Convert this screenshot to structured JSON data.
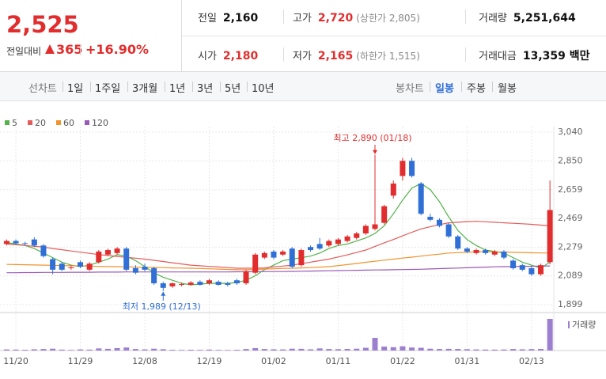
{
  "quote": {
    "price": "2,525",
    "change_label": "전일대비",
    "change": "365",
    "change_pct": "+16.90%",
    "color": "#e12d2d"
  },
  "summary": [
    [
      {
        "label": "전일",
        "value": "2,160",
        "color": "#111111"
      },
      {
        "label": "고가",
        "value": "2,720",
        "note": "(상한가 2,805)",
        "color": "#e12d2d"
      },
      {
        "label": "거래량",
        "value": "5,251,644",
        "color": "#111111"
      }
    ],
    [
      {
        "label": "시가",
        "value": "2,180",
        "color": "#e12d2d"
      },
      {
        "label": "저가",
        "value": "2,165",
        "note": "(하한가 1,515)",
        "color": "#e12d2d"
      },
      {
        "label": "거래대금",
        "value": "13,359 백만",
        "color": "#111111"
      }
    ]
  ],
  "toolbar": {
    "line_label": "선차트",
    "line_periods": [
      "1일",
      "1주일",
      "3개월",
      "1년",
      "3년",
      "5년",
      "10년"
    ],
    "candle_label": "봉차트",
    "candle_periods": [
      "일봉",
      "주봉",
      "월봉"
    ],
    "active": 0
  },
  "chart_data": {
    "type": "candlestick",
    "categories": [
      null,
      "11/20",
      null,
      null,
      null,
      null,
      null,
      null,
      "11/29",
      null,
      null,
      null,
      null,
      null,
      null,
      "12/08",
      null,
      null,
      null,
      null,
      null,
      null,
      "12/19",
      null,
      null,
      null,
      null,
      null,
      null,
      "01/02",
      null,
      null,
      null,
      null,
      null,
      null,
      "01/11",
      null,
      null,
      null,
      null,
      null,
      null,
      "01/22",
      null,
      null,
      null,
      null,
      null,
      null,
      "01/31",
      null,
      null,
      null,
      null,
      null,
      null,
      "02/13",
      null,
      null
    ],
    "open": [
      2300,
      2320,
      2305,
      2330,
      2290,
      2200,
      2170,
      2140,
      2180,
      2130,
      2180,
      2230,
      2240,
      2270,
      2140,
      2150,
      2140,
      2040,
      2020,
      2030,
      2030,
      2050,
      2040,
      2050,
      2040,
      2060,
      2040,
      2110,
      2210,
      2250,
      2230,
      2270,
      2160,
      2280,
      2300,
      2290,
      2300,
      2320,
      2340,
      2370,
      2400,
      2440,
      2620,
      2750,
      2850,
      2700,
      2480,
      2460,
      2430,
      2350,
      2270,
      2240,
      2260,
      2230,
      2250,
      2190,
      2160,
      2140,
      2100,
      2180
    ],
    "high": [
      2330,
      2330,
      2315,
      2345,
      2300,
      2210,
      2180,
      2160,
      2190,
      2180,
      2260,
      2270,
      2280,
      2280,
      2160,
      2170,
      2150,
      2050,
      2045,
      2045,
      2055,
      2060,
      2070,
      2060,
      2050,
      2070,
      2130,
      2240,
      2250,
      2260,
      2260,
      2280,
      2270,
      2290,
      2340,
      2330,
      2340,
      2360,
      2380,
      2430,
      2890,
      2560,
      2720,
      2870,
      2870,
      2710,
      2500,
      2470,
      2440,
      2360,
      2280,
      2270,
      2270,
      2260,
      2260,
      2200,
      2170,
      2150,
      2170,
      2720
    ],
    "low": [
      2290,
      2295,
      2290,
      2280,
      2210,
      2100,
      2120,
      2130,
      2140,
      2120,
      2170,
      2220,
      2230,
      2120,
      2100,
      2120,
      2030,
      1989,
      2010,
      2020,
      2025,
      2025,
      2030,
      2025,
      2020,
      2030,
      2030,
      2100,
      2200,
      2200,
      2220,
      2140,
      2150,
      2250,
      2260,
      2280,
      2290,
      2310,
      2330,
      2360,
      2390,
      2430,
      2600,
      2720,
      2740,
      2490,
      2450,
      2410,
      2340,
      2260,
      2240,
      2230,
      2230,
      2220,
      2200,
      2130,
      2120,
      2090,
      2090,
      2165
    ],
    "close": [
      2320,
      2305,
      2300,
      2290,
      2220,
      2130,
      2130,
      2145,
      2150,
      2170,
      2250,
      2260,
      2270,
      2130,
      2110,
      2130,
      2040,
      2010,
      2040,
      2035,
      2045,
      2030,
      2060,
      2030,
      2030,
      2040,
      2120,
      2230,
      2240,
      2210,
      2250,
      2150,
      2260,
      2260,
      2270,
      2320,
      2330,
      2350,
      2370,
      2420,
      2430,
      2550,
      2700,
      2850,
      2750,
      2500,
      2460,
      2420,
      2350,
      2270,
      2250,
      2260,
      2240,
      2250,
      2210,
      2140,
      2130,
      2100,
      2160,
      2525
    ],
    "up_color": "#e12d2d",
    "down_color": "#2f6fd6",
    "ylim": [
      1899,
      3040
    ],
    "yticks": [
      {
        "value": 3040,
        "label": "3,040"
      },
      {
        "value": 2850,
        "label": "2,850"
      },
      {
        "value": 2659,
        "label": "2,659"
      },
      {
        "value": 2469,
        "label": "2,469"
      },
      {
        "value": 2279,
        "label": "2,279"
      },
      {
        "value": 2089,
        "label": "2,089"
      },
      {
        "value": 1899,
        "label": "1,899"
      }
    ],
    "grid": true,
    "ma": [
      {
        "name": "5",
        "color": "#53b24a",
        "values": [
          2310,
          2300,
          2290,
          2270,
          2240,
          2210,
          2180,
          2160,
          2150,
          2160,
          2180,
          2200,
          2230,
          2220,
          2190,
          2150,
          2110,
          2080,
          2060,
          2040,
          2030,
          2035,
          2040,
          2040,
          2040,
          2045,
          2060,
          2090,
          2130,
          2160,
          2190,
          2200,
          2210,
          2220,
          2240,
          2270,
          2290,
          2300,
          2320,
          2340,
          2370,
          2420,
          2500,
          2590,
          2670,
          2700,
          2660,
          2580,
          2480,
          2390,
          2330,
          2290,
          2260,
          2250,
          2240,
          2210,
          2180,
          2160,
          2140,
          2180
        ]
      },
      {
        "name": "20",
        "color": "#e55a5a",
        "values": [
          2300,
          2295,
          2290,
          2285,
          2280,
          2270,
          2262,
          2254,
          2246,
          2238,
          2230,
          2224,
          2218,
          2212,
          2206,
          2200,
          2192,
          2184,
          2176,
          2168,
          2160,
          2156,
          2152,
          2148,
          2144,
          2140,
          2140,
          2140,
          2142,
          2148,
          2154,
          2160,
          2170,
          2180,
          2190,
          2200,
          2214,
          2228,
          2244,
          2260,
          2284,
          2308,
          2330,
          2354,
          2378,
          2400,
          2414,
          2428,
          2440,
          2444,
          2448,
          2450,
          2447,
          2444,
          2440,
          2437,
          2434,
          2430,
          2425,
          2420
        ]
      },
      {
        "name": "60",
        "color": "#f0932b",
        "values": [
          2165,
          2164,
          2163,
          2161,
          2160,
          2159,
          2157,
          2156,
          2155,
          2154,
          2152,
          2151,
          2150,
          2149,
          2147,
          2146,
          2145,
          2144,
          2142,
          2141,
          2140,
          2138,
          2136,
          2134,
          2132,
          2130,
          2130,
          2132,
          2134,
          2136,
          2138,
          2140,
          2142,
          2144,
          2147,
          2150,
          2157,
          2164,
          2171,
          2179,
          2186,
          2193,
          2200,
          2207,
          2213,
          2220,
          2227,
          2233,
          2240,
          2243,
          2245,
          2248,
          2250,
          2248,
          2247,
          2245,
          2244,
          2242,
          2241,
          2240
        ]
      },
      {
        "name": "120",
        "color": "#9b59b6",
        "values": [
          2110,
          2110,
          2111,
          2111,
          2112,
          2112,
          2112,
          2113,
          2113,
          2113,
          2114,
          2114,
          2114,
          2115,
          2115,
          2115,
          2115,
          2115,
          2115,
          2115,
          2115,
          2115,
          2115,
          2115,
          2115,
          2116,
          2116,
          2117,
          2117,
          2118,
          2118,
          2119,
          2120,
          2121,
          2122,
          2123,
          2124,
          2125,
          2126,
          2127,
          2128,
          2129,
          2130,
          2131,
          2132,
          2133,
          2135,
          2137,
          2139,
          2141,
          2143,
          2145,
          2147,
          2149,
          2150,
          2151,
          2152,
          2153,
          2154,
          2155
        ]
      }
    ],
    "volume": {
      "name": "거래량",
      "color": "#9c7fd0",
      "values": [
        180000,
        150000,
        120000,
        200000,
        250000,
        300000,
        150000,
        100000,
        180000,
        150000,
        350000,
        280000,
        400000,
        500000,
        250000,
        180000,
        300000,
        220000,
        120000,
        100000,
        130000,
        110000,
        150000,
        100000,
        90000,
        120000,
        250000,
        400000,
        250000,
        200000,
        180000,
        300000,
        280000,
        200000,
        350000,
        250000,
        220000,
        260000,
        300000,
        450000,
        2100000,
        650000,
        550000,
        700000,
        500000,
        450000,
        300000,
        250000,
        280000,
        260000,
        220000,
        180000,
        160000,
        150000,
        170000,
        250000,
        200000,
        230000,
        260000,
        5251644
      ]
    },
    "annotations": [
      {
        "text": "최고 2,890 (01/18)",
        "at": "high"
      },
      {
        "text": "최저 1,989 (12/13)",
        "at": "low"
      }
    ]
  }
}
